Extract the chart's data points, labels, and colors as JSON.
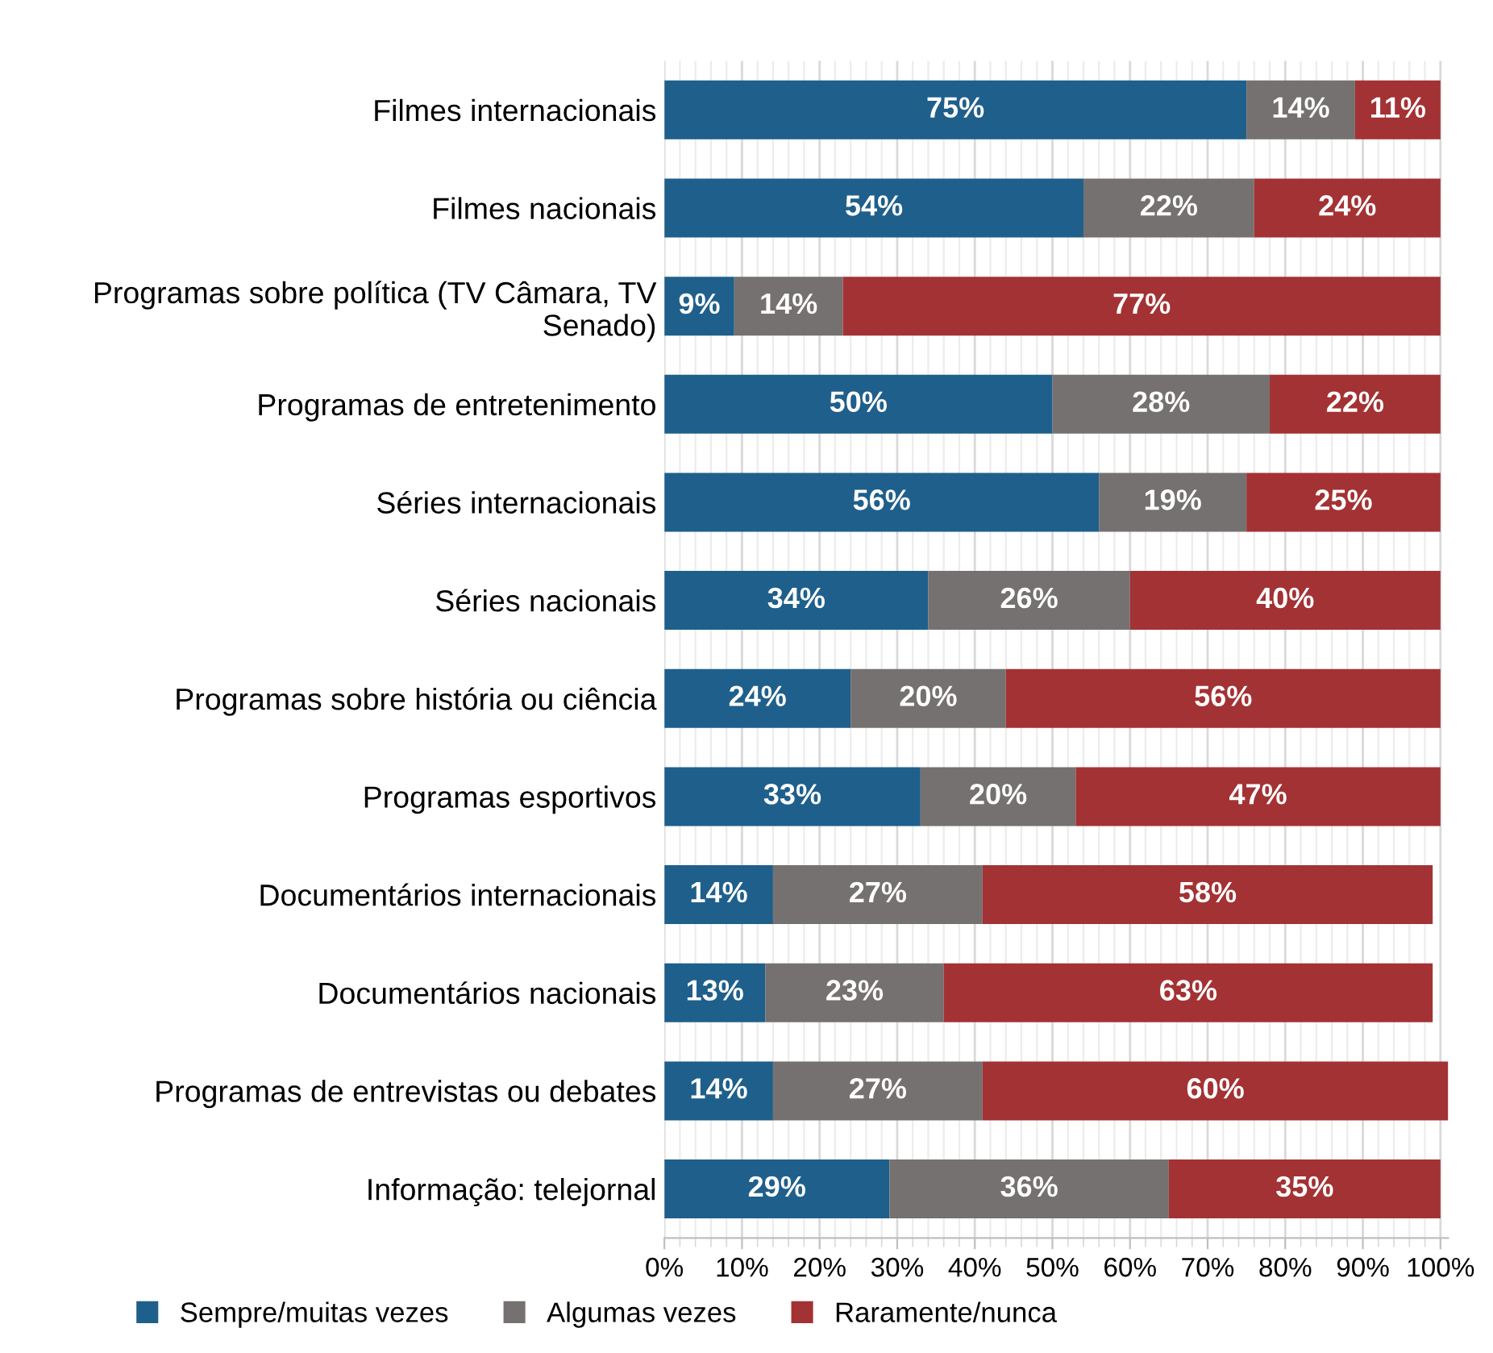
{
  "chart_data": {
    "type": "bar",
    "orientation": "horizontal",
    "stacked": true,
    "grid": "x",
    "legend": "bottom",
    "categories": [
      "Filmes internacionais",
      "Filmes nacionais",
      "Programas sobre política (TV Câmara, TV\nSenado)",
      "Programas de entretenimento",
      "Séries internacionais",
      "Séries nacionais",
      "Programas sobre história ou ciência",
      "Programas esportivos",
      "Documentários internacionais",
      "Documentários nacionais",
      "Programas de entrevistas ou debates",
      "Informação: telejornal"
    ],
    "series": [
      {
        "name": "Sempre/muitas vezes",
        "color": "#1f5f8b",
        "values": [
          75,
          54,
          9,
          50,
          56,
          34,
          24,
          33,
          14,
          13,
          14,
          29
        ],
        "value_labels": [
          "75%",
          "54%",
          "9%",
          "50%",
          "56%",
          "34%",
          "24%",
          "33%",
          "14%",
          "13%",
          "14%",
          "29%"
        ]
      },
      {
        "name": "Algumas vezes",
        "color": "#767171",
        "values": [
          14,
          22,
          14,
          28,
          19,
          26,
          20,
          20,
          27,
          23,
          27,
          36
        ],
        "value_labels": [
          "14%",
          "22%",
          "14%",
          "28%",
          "19%",
          "26%",
          "20%",
          "20%",
          "27%",
          "23%",
          "27%",
          "36%"
        ]
      },
      {
        "name": "Raramente/nunca",
        "color": "#a33234",
        "values": [
          11,
          24,
          77,
          22,
          25,
          40,
          56,
          47,
          58,
          63,
          60,
          35
        ],
        "value_labels": [
          "11%",
          "24%",
          "77%",
          "22%",
          "25%",
          "40%",
          "56%",
          "47%",
          "58%",
          "63%",
          "60%",
          "35%"
        ]
      }
    ],
    "xlim": [
      0,
      101
    ],
    "xticks": [
      {
        "value": 0,
        "label": "0%"
      },
      {
        "value": 10,
        "label": "10%"
      },
      {
        "value": 20,
        "label": "20%"
      },
      {
        "value": 30,
        "label": "30%"
      },
      {
        "value": 40,
        "label": "40%"
      },
      {
        "value": 50,
        "label": "50%"
      },
      {
        "value": 60,
        "label": "60%"
      },
      {
        "value": 70,
        "label": "70%"
      },
      {
        "value": 80,
        "label": "80%"
      },
      {
        "value": 90,
        "label": "90%"
      },
      {
        "value": 100,
        "label": "100%"
      }
    ]
  }
}
